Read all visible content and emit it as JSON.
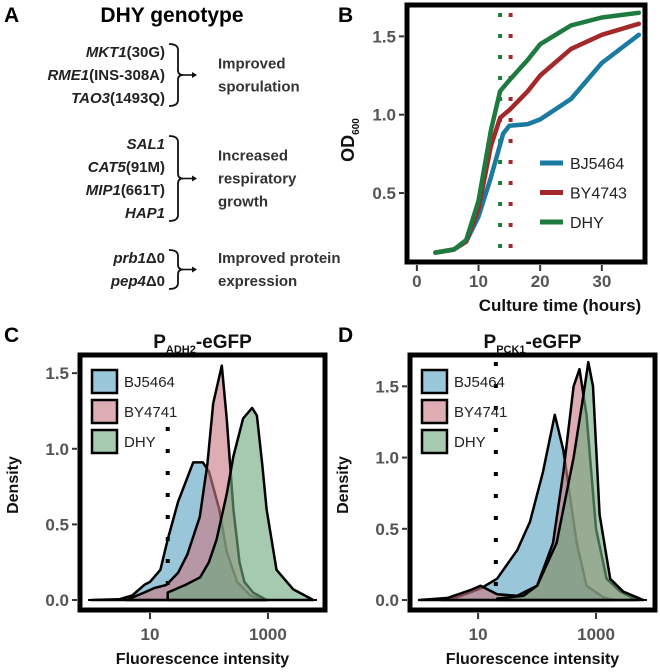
{
  "panel_labels": [
    "A",
    "B",
    "C",
    "D"
  ],
  "panel_a": {
    "title": "DHY genotype",
    "groups": [
      {
        "genes": [
          {
            "gene": "MKT1",
            "allele": "(30G)"
          },
          {
            "gene": "RME1",
            "allele": "(INS-308A)"
          },
          {
            "gene": "TAO3",
            "allele": "(1493Q)"
          }
        ],
        "effect": [
          "Improved",
          "sporulation"
        ]
      },
      {
        "genes": [
          {
            "gene": "SAL1",
            "allele": ""
          },
          {
            "gene": "CAT5",
            "allele": "(91M)"
          },
          {
            "gene": "MIP1",
            "allele": "(661T)"
          },
          {
            "gene": "HAP1",
            "allele": ""
          }
        ],
        "effect": [
          "Increased",
          "respiratory",
          "growth"
        ]
      },
      {
        "genes": [
          {
            "gene": "prb1",
            "allele": "Δ0"
          },
          {
            "gene": "pep4",
            "allele": "Δ0"
          }
        ],
        "effect": [
          "Improved protein",
          "expression"
        ]
      }
    ]
  },
  "chart_data": [
    {
      "panel": "B",
      "type": "line",
      "xlabel": "Culture  time (hours)",
      "ylabel": "OD",
      "ylabel_sub": "600",
      "xlim": [
        -1.6,
        37
      ],
      "ylim": [
        0.06,
        1.7
      ],
      "xticks": [
        0,
        10,
        20,
        30
      ],
      "yticks": [
        0.5,
        1.0,
        1.5
      ],
      "xtick_labels": [
        "0",
        "10",
        "20",
        "30"
      ],
      "ytick_labels": [
        "0.5",
        "1.0",
        "1.5"
      ],
      "legend_position": "right",
      "vlines": [
        {
          "x": 13.5,
          "color": "#1e7a3e",
          "style": "dotted"
        },
        {
          "x": 15.2,
          "color": "#a3282a",
          "style": "dotted"
        }
      ],
      "series": [
        {
          "name": "BJ5464",
          "color": "#1a7aa0",
          "x": [
            3,
            6,
            8,
            10,
            12,
            14,
            15,
            18,
            20,
            25,
            30,
            36
          ],
          "y": [
            0.12,
            0.14,
            0.19,
            0.35,
            0.6,
            0.88,
            0.93,
            0.94,
            0.97,
            1.1,
            1.33,
            1.51
          ]
        },
        {
          "name": "BY4743",
          "color": "#a3282a",
          "x": [
            3,
            6,
            8,
            10,
            12,
            13.5,
            15,
            18,
            20,
            25,
            30,
            36
          ],
          "y": [
            0.12,
            0.14,
            0.19,
            0.4,
            0.8,
            0.98,
            1.03,
            1.15,
            1.25,
            1.42,
            1.51,
            1.58
          ]
        },
        {
          "name": "DHY",
          "color": "#1e7a3e",
          "x": [
            3,
            6,
            8,
            10,
            12,
            13.5,
            15,
            18,
            20,
            25,
            30,
            36
          ],
          "y": [
            0.12,
            0.14,
            0.2,
            0.45,
            0.9,
            1.15,
            1.22,
            1.35,
            1.45,
            1.57,
            1.62,
            1.65
          ]
        }
      ]
    },
    {
      "panel": "C",
      "type": "area",
      "title": "P",
      "title_sub": "ADH2",
      "title_suffix": "-eGFP",
      "xlabel": "Fluorescence intensity",
      "ylabel": "Density",
      "xscale": "log",
      "xlim": [
        0.65,
        9300
      ],
      "ylim": [
        -0.066,
        1.62
      ],
      "xticks": [
        10,
        1000
      ],
      "yticks": [
        0,
        0.5,
        1.0,
        1.5
      ],
      "xtick_labels": [
        "10",
        "1000"
      ],
      "ytick_labels": [
        "0.0",
        "0.5",
        "1.0",
        "1.5"
      ],
      "legend_position": "top-left",
      "vline": {
        "x": 20,
        "style": "dotted"
      },
      "series": [
        {
          "name": "BJ5464",
          "color": "#5aa3c0",
          "x": [
            1,
            3,
            5,
            8,
            10,
            15,
            20,
            30,
            54,
            79,
            100,
            150,
            200,
            300,
            500,
            950
          ],
          "y": [
            0,
            0.005,
            0.03,
            0.1,
            0.12,
            0.2,
            0.4,
            0.65,
            0.91,
            0.91,
            0.85,
            0.6,
            0.32,
            0.12,
            0.03,
            0
          ]
        },
        {
          "name": "BY4741",
          "color": "#c97a84",
          "x": [
            4,
            8,
            12,
            19,
            30,
            43,
            70,
            94,
            118,
            165,
            200,
            260,
            330,
            400,
            560,
            950
          ],
          "y": [
            0,
            0.05,
            0.08,
            0.1,
            0.18,
            0.3,
            0.55,
            0.9,
            1.3,
            1.55,
            1.2,
            0.6,
            0.25,
            0.12,
            0.05,
            0
          ]
        },
        {
          "name": "DHY",
          "color": "#6daa80",
          "x": [
            20,
            40,
            71,
            100,
            135,
            200,
            260,
            380,
            540,
            650,
            800,
            950,
            1400,
            2700,
            5900
          ],
          "y": [
            0.05,
            0.1,
            0.15,
            0.25,
            0.4,
            0.7,
            0.95,
            1.2,
            1.27,
            1.22,
            0.9,
            0.6,
            0.2,
            0.07,
            0
          ]
        }
      ]
    },
    {
      "panel": "D",
      "type": "area",
      "title": "P",
      "title_sub": "PCK1",
      "title_suffix": "-eGFP",
      "xlabel": "Fluorescence intensity",
      "ylabel": "Density",
      "xscale": "log",
      "xlim": [
        0.7,
        10000
      ],
      "ylim": [
        -0.07,
        1.72
      ],
      "xticks": [
        10,
        1000
      ],
      "yticks": [
        0,
        0.5,
        1.0,
        1.5
      ],
      "xtick_labels": [
        "10",
        "1000"
      ],
      "ytick_labels": [
        "0.0",
        "0.5",
        "1.0",
        "1.5"
      ],
      "legend_position": "top-left",
      "vline": {
        "x": 20,
        "style": "dotted"
      },
      "series": [
        {
          "name": "BJ5464",
          "color": "#5aa3c0",
          "x": [
            1,
            4.4,
            11,
            21,
            46,
            76,
            126,
            200,
            280,
            470,
            690,
            1320,
            2000
          ],
          "y": [
            0,
            0.02,
            0.08,
            0.15,
            0.35,
            0.55,
            0.9,
            1.3,
            1.05,
            0.4,
            0.1,
            0.02,
            0
          ]
        },
        {
          "name": "BY4741",
          "color": "#c97a84",
          "x": [
            2.4,
            7.4,
            11,
            21,
            46,
            100,
            186,
            280,
            417,
            525,
            690,
            1000,
            1510,
            2570,
            4900
          ],
          "y": [
            0,
            0.07,
            0.1,
            0.04,
            0.03,
            0.1,
            0.4,
            0.9,
            1.5,
            1.62,
            1.3,
            0.5,
            0.15,
            0.06,
            0
          ]
        },
        {
          "name": "DHY",
          "color": "#6daa80",
          "x": [
            21,
            59,
            100,
            214,
            417,
            617,
            740,
            890,
            1150,
            1740,
            2880,
            6300
          ],
          "y": [
            0.01,
            0.03,
            0.1,
            0.4,
            1.0,
            1.45,
            1.67,
            1.5,
            0.6,
            0.15,
            0.06,
            0
          ]
        }
      ]
    }
  ]
}
